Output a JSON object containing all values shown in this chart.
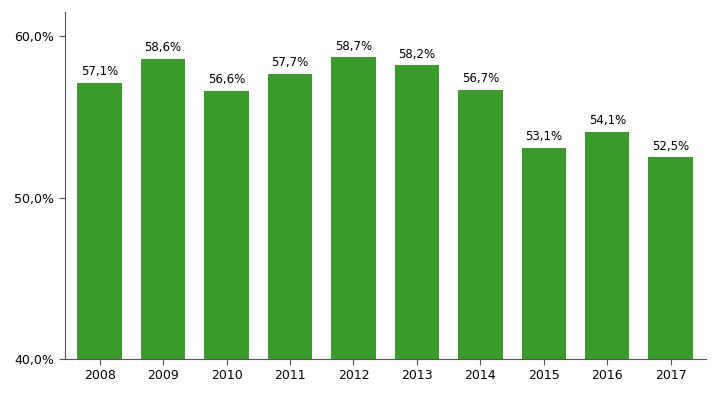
{
  "years": [
    2008,
    2009,
    2010,
    2011,
    2012,
    2013,
    2014,
    2015,
    2016,
    2017
  ],
  "values": [
    57.1,
    58.6,
    56.6,
    57.7,
    58.7,
    58.2,
    56.7,
    53.1,
    54.1,
    52.5
  ],
  "labels": [
    "57,1%",
    "58,6%",
    "56,6%",
    "57,7%",
    "58,7%",
    "58,2%",
    "56,7%",
    "53,1%",
    "54,1%",
    "52,5%"
  ],
  "bar_color": "#3a9a2a",
  "bar_edge_color": "#3a9a2a",
  "ylim_min": 40.0,
  "ylim_max": 61.5,
  "yticks": [
    40.0,
    50.0,
    60.0
  ],
  "ytick_labels": [
    "40,0%",
    "50,0%",
    "60,0%"
  ],
  "background_color": "#ffffff",
  "label_fontsize": 8.5,
  "tick_fontsize": 9,
  "bar_width": 0.7
}
